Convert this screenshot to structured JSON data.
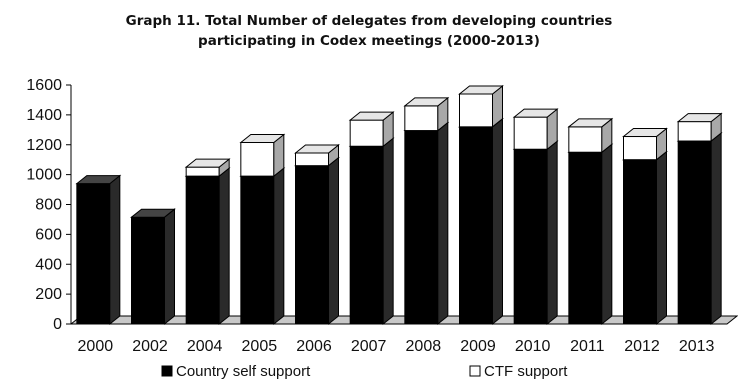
{
  "chart_data": {
    "type": "bar",
    "stacked": true,
    "three_d": true,
    "title_lines": [
      "Graph 11. Total Number of delegates from developing countries",
      "participating in Codex meetings (2000-2013)"
    ],
    "categories": [
      "2000",
      "2002",
      "2004",
      "2005",
      "2006",
      "2007",
      "2008",
      "2009",
      "2010",
      "2011",
      "2012",
      "2013"
    ],
    "series": [
      {
        "name": "Country self support",
        "color": "#000000",
        "values": [
          940,
          715,
          990,
          990,
          1060,
          1190,
          1295,
          1320,
          1170,
          1150,
          1100,
          1225
        ]
      },
      {
        "name": "CTF support",
        "color": "#ffffff",
        "values": [
          0,
          0,
          60,
          225,
          85,
          175,
          165,
          220,
          215,
          170,
          155,
          130
        ]
      }
    ],
    "yticks": [
      "0",
      "200",
      "400",
      "600",
      "800",
      "1000",
      "1200",
      "1400",
      "1600"
    ],
    "ylim": [
      0,
      1600
    ],
    "grid": false,
    "legend_position": "bottom"
  }
}
